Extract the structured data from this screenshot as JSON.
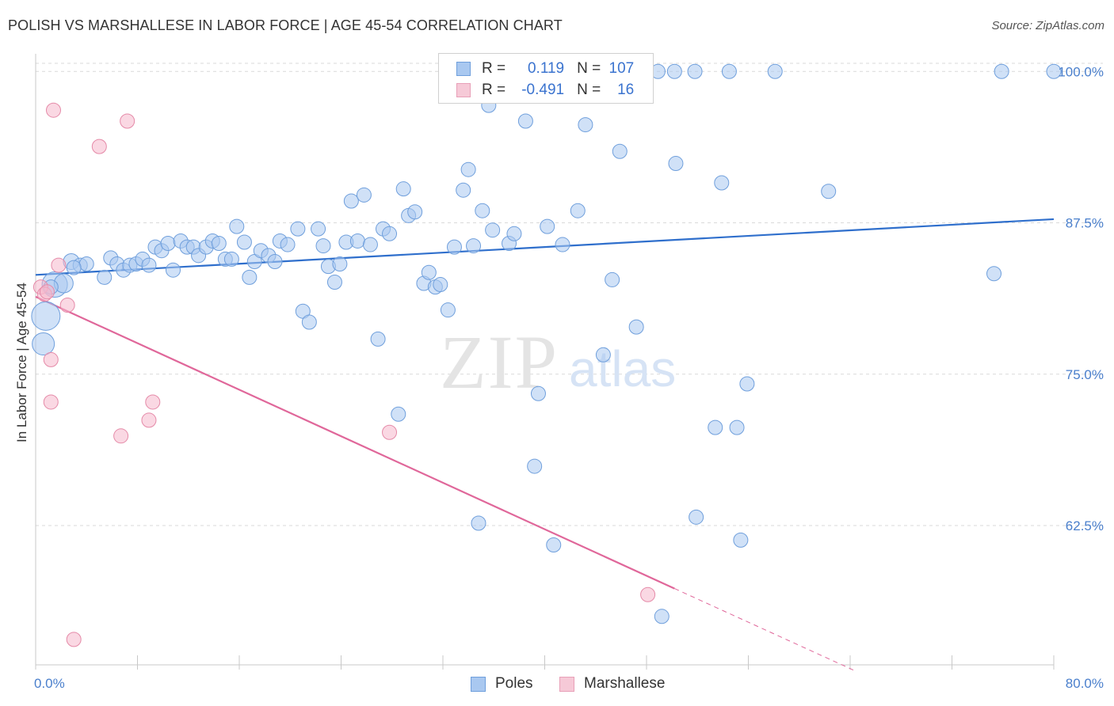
{
  "title": "POLISH VS MARSHALLESE IN LABOR FORCE | AGE 45-54 CORRELATION CHART",
  "source": "Source: ZipAtlas.com",
  "watermark": {
    "zip": "ZIP",
    "atlas": "atlas"
  },
  "legend_top": {
    "rows": [
      {
        "r_label": "R =",
        "r_value": "0.119",
        "n_label": "N =",
        "n_value": "107"
      },
      {
        "r_label": "R =",
        "r_value": "-0.491",
        "n_label": "N =",
        "n_value": "16"
      }
    ]
  },
  "legend_bottom": {
    "poles": "Poles",
    "marshallese": "Marshallese"
  },
  "colors": {
    "poles_fill": "#a9c8f0",
    "poles_stroke": "#6f9fdc",
    "poles_line": "#2f6fcc",
    "marsh_fill": "#f6b8cc",
    "marsh_stroke": "#e58aa8",
    "marsh_line": "#e0679a",
    "tick_text": "#4a7fcc",
    "grid": "#d9d9d9"
  },
  "chart_data": {
    "type": "scatter",
    "title": "POLISH VS MARSHALLESE IN LABOR FORCE | AGE 45-54 CORRELATION CHART",
    "xlabel": "",
    "ylabel": "In Labor Force | Age 45-54",
    "xlim": [
      0,
      80
    ],
    "ylim": [
      51,
      102.5
    ],
    "x_tick_labels": [
      "0.0%",
      "80.0%"
    ],
    "y_ticks": [
      62.5,
      75.0,
      87.5,
      100.0
    ],
    "y_tick_labels": [
      "62.5%",
      "75.0%",
      "87.5%",
      "100.0%"
    ],
    "grid": true,
    "legend_position": "top-center",
    "series": [
      {
        "name": "Poles",
        "trend": {
          "x": [
            0,
            80
          ],
          "y": [
            83.2,
            87.8
          ]
        },
        "points": [
          [
            0.6,
            77.5,
            14
          ],
          [
            0.8,
            79.8,
            18
          ],
          [
            1.5,
            82.4,
            16
          ],
          [
            2.2,
            82.5,
            12
          ],
          [
            2.8,
            84.3,
            10
          ],
          [
            3.5,
            84.0,
            9
          ],
          [
            4.0,
            84.1,
            9
          ],
          [
            5.4,
            83.0,
            9
          ],
          [
            5.9,
            84.6,
            9
          ],
          [
            6.4,
            84.1,
            9
          ],
          [
            6.9,
            83.6,
            9
          ],
          [
            7.4,
            84.0,
            9
          ],
          [
            7.9,
            84.1,
            9
          ],
          [
            8.4,
            84.5,
            9
          ],
          [
            8.9,
            84.0,
            9
          ],
          [
            9.4,
            85.5,
            9
          ],
          [
            9.9,
            85.2,
            9
          ],
          [
            10.4,
            85.8,
            9
          ],
          [
            10.8,
            83.6,
            9
          ],
          [
            11.4,
            86.0,
            9
          ],
          [
            11.9,
            85.5,
            9
          ],
          [
            12.4,
            85.5,
            9
          ],
          [
            12.8,
            84.8,
            9
          ],
          [
            13.4,
            85.5,
            9
          ],
          [
            13.9,
            86.0,
            9
          ],
          [
            14.4,
            85.8,
            9
          ],
          [
            14.9,
            84.5,
            9
          ],
          [
            15.4,
            84.5,
            9
          ],
          [
            15.8,
            87.2,
            9
          ],
          [
            16.4,
            85.9,
            9
          ],
          [
            16.8,
            83.0,
            9
          ],
          [
            17.2,
            84.3,
            9
          ],
          [
            17.7,
            85.2,
            9
          ],
          [
            18.3,
            84.8,
            9
          ],
          [
            18.8,
            84.3,
            9
          ],
          [
            19.2,
            86.0,
            9
          ],
          [
            19.8,
            85.7,
            9
          ],
          [
            20.6,
            87.0,
            9
          ],
          [
            21.0,
            80.2,
            9
          ],
          [
            21.5,
            79.3,
            9
          ],
          [
            22.2,
            87.0,
            9
          ],
          [
            22.6,
            85.6,
            9
          ],
          [
            23.0,
            83.9,
            9
          ],
          [
            23.5,
            82.6,
            9
          ],
          [
            23.9,
            84.1,
            9
          ],
          [
            24.4,
            85.9,
            9
          ],
          [
            24.8,
            89.3,
            9
          ],
          [
            25.3,
            86.0,
            9
          ],
          [
            25.8,
            89.8,
            9
          ],
          [
            26.3,
            85.7,
            9
          ],
          [
            26.9,
            77.9,
            9
          ],
          [
            27.3,
            87.0,
            9
          ],
          [
            27.8,
            86.6,
            9
          ],
          [
            28.5,
            71.7,
            9
          ],
          [
            28.9,
            90.3,
            9
          ],
          [
            29.3,
            88.1,
            9
          ],
          [
            29.8,
            88.4,
            9
          ],
          [
            30.5,
            82.5,
            9
          ],
          [
            30.9,
            83.4,
            9
          ],
          [
            31.4,
            82.2,
            9
          ],
          [
            31.8,
            82.4,
            9
          ],
          [
            32.4,
            80.3,
            9
          ],
          [
            32.9,
            85.5,
            9
          ],
          [
            33.2,
            100.0,
            9
          ],
          [
            33.6,
            90.2,
            9
          ],
          [
            34.0,
            91.9,
            9
          ],
          [
            34.4,
            85.6,
            9
          ],
          [
            34.8,
            62.7,
            9
          ],
          [
            35.1,
            88.5,
            9
          ],
          [
            35.6,
            97.2,
            9
          ],
          [
            35.9,
            86.9,
            9
          ],
          [
            36.3,
            100.0,
            9
          ],
          [
            37.2,
            85.8,
            9
          ],
          [
            37.6,
            86.6,
            9
          ],
          [
            38.5,
            95.9,
            9
          ],
          [
            39.2,
            67.4,
            9
          ],
          [
            39.5,
            73.4,
            9
          ],
          [
            40.2,
            87.2,
            9
          ],
          [
            40.7,
            60.9,
            9
          ],
          [
            41.4,
            85.7,
            9
          ],
          [
            41.9,
            98.9,
            9
          ],
          [
            42.6,
            88.5,
            9
          ],
          [
            43.2,
            95.6,
            9
          ],
          [
            44.2,
            100.0,
            9
          ],
          [
            44.6,
            76.6,
            9
          ],
          [
            45.3,
            82.8,
            9
          ],
          [
            45.9,
            93.4,
            9
          ],
          [
            47.2,
            78.9,
            9
          ],
          [
            48.9,
            100.0,
            9
          ],
          [
            49.2,
            55.0,
            9
          ],
          [
            50.2,
            100.0,
            9
          ],
          [
            50.3,
            92.4,
            9
          ],
          [
            51.8,
            100.0,
            9
          ],
          [
            51.9,
            63.2,
            9
          ],
          [
            53.4,
            70.6,
            9
          ],
          [
            53.9,
            90.8,
            9
          ],
          [
            54.5,
            100.0,
            9
          ],
          [
            55.1,
            70.6,
            9
          ],
          [
            55.4,
            61.3,
            9
          ],
          [
            55.9,
            74.2,
            9
          ],
          [
            58.1,
            100.0,
            9
          ],
          [
            62.3,
            90.1,
            9
          ],
          [
            75.9,
            100.0,
            9
          ],
          [
            75.3,
            83.3,
            9
          ],
          [
            80.0,
            100.0,
            9
          ],
          [
            1.2,
            82.2,
            9
          ],
          [
            3.0,
            83.8,
            9
          ]
        ]
      },
      {
        "name": "Marshallese",
        "trend": {
          "x": [
            0,
            50.2
          ],
          "y": [
            81.4,
            57.3
          ]
        },
        "trend_dashed": {
          "x": [
            50.2,
            64.4
          ],
          "y": [
            57.3,
            50.5
          ]
        },
        "points": [
          [
            0.4,
            82.2,
            9
          ],
          [
            0.7,
            81.6,
            9
          ],
          [
            1.2,
            76.2,
            9
          ],
          [
            1.2,
            72.7,
            9
          ],
          [
            1.4,
            96.8,
            9
          ],
          [
            1.8,
            84.0,
            9
          ],
          [
            2.5,
            80.7,
            9
          ],
          [
            3.0,
            53.1,
            9
          ],
          [
            5.0,
            93.8,
            9
          ],
          [
            6.7,
            69.9,
            9
          ],
          [
            7.2,
            95.9,
            9
          ],
          [
            8.9,
            71.2,
            9
          ],
          [
            9.2,
            72.7,
            9
          ],
          [
            27.8,
            70.2,
            9
          ],
          [
            48.1,
            56.8,
            9
          ],
          [
            0.9,
            81.8,
            9
          ]
        ]
      }
    ]
  }
}
